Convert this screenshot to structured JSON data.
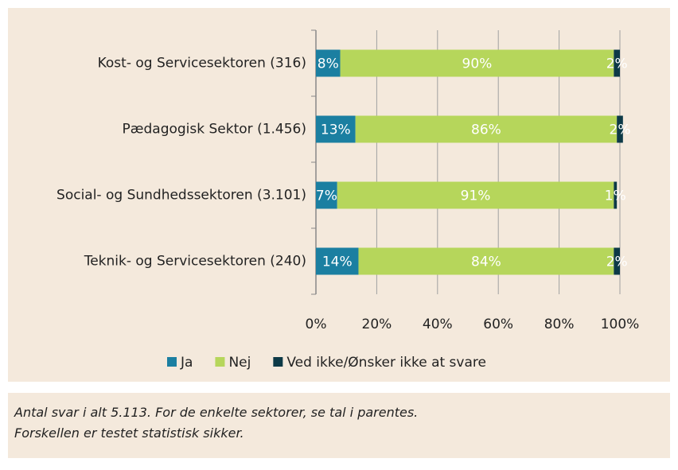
{
  "chart_data": {
    "type": "bar",
    "orientation": "horizontal",
    "stacked": true,
    "categories": [
      "Kost- og Servicesektoren (316)",
      "Pædagogisk Sektor (1.456)",
      "Social- og Sundhedssektoren (3.101)",
      "Teknik- og Servicesektoren (240)"
    ],
    "series": [
      {
        "name": "Ja",
        "color": "#1b7fa1",
        "values": [
          8,
          13,
          7,
          14
        ],
        "value_labels": [
          "8%",
          "13%",
          "7%",
          "14%"
        ]
      },
      {
        "name": "Nej",
        "color": "#b6d65b",
        "values": [
          90,
          86,
          91,
          84
        ],
        "value_labels": [
          "90%",
          "86%",
          "91%",
          "84%"
        ]
      },
      {
        "name": "Ved ikke/Ønsker ikke at svare",
        "color": "#0d3a47",
        "values": [
          2,
          2,
          1,
          2
        ],
        "value_labels": [
          "2%",
          "2%",
          "1%",
          "2%"
        ]
      }
    ],
    "xlim": [
      0,
      100
    ],
    "xticks": [
      {
        "value": 0,
        "label": "0%"
      },
      {
        "value": 20,
        "label": "20%"
      },
      {
        "value": 40,
        "label": "40%"
      },
      {
        "value": 60,
        "label": "60%"
      },
      {
        "value": 80,
        "label": "80%"
      },
      {
        "value": 100,
        "label": "100%"
      }
    ],
    "grid": true,
    "legend": "bottom"
  },
  "footnote": [
    "Antal svar i alt 5.113. For de enkelte sektorer, se tal i parentes.",
    "Forskellen er testet statistisk sikker."
  ]
}
